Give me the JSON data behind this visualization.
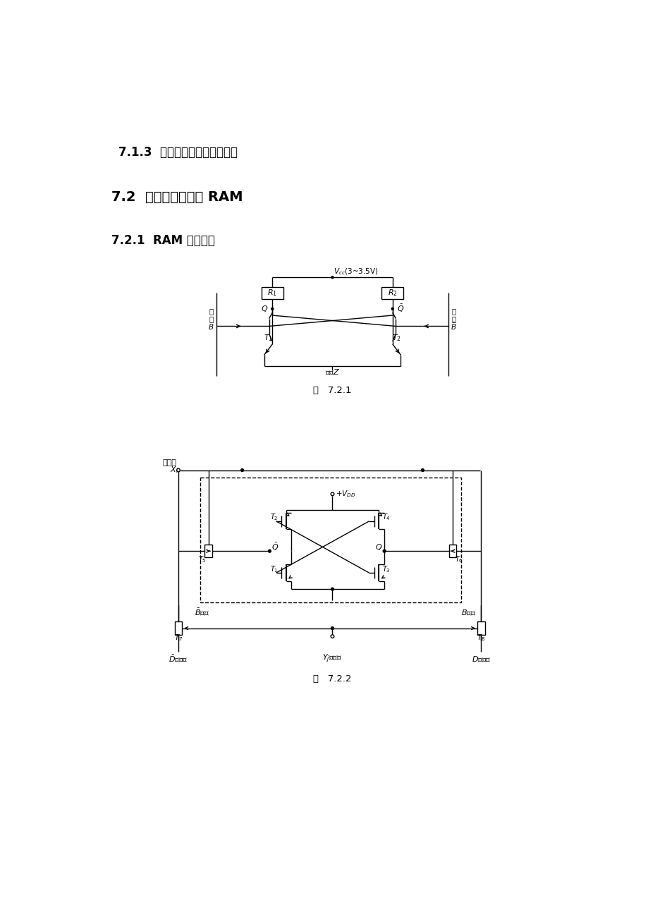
{
  "title1": "7.1.3  半导体存储器的技术指标",
  "title2": "7.2  随机存取存储器 RAM",
  "title3": "7.2.1  RAM 存储单元",
  "fig1_caption": "图   7.2.1",
  "fig2_caption": "图   7.2.2",
  "bg_color": "#ffffff",
  "line_color": "#000000",
  "text_color": "#000000"
}
